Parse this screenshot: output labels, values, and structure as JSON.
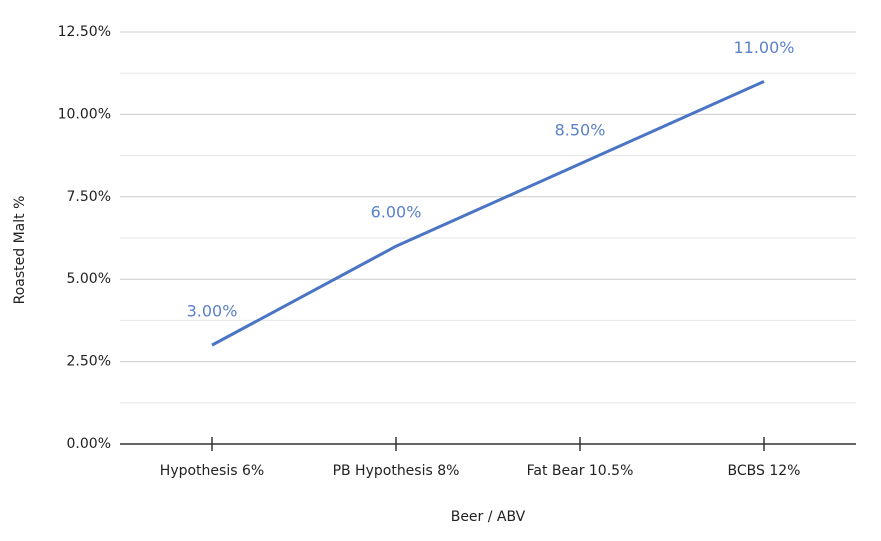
{
  "chart_data": {
    "type": "line",
    "x_label": "Beer / ABV",
    "y_label": "Roasted Malt %",
    "categories": [
      "Hypothesis 6%",
      "PB Hypothesis 8%",
      "Fat Bear 10.5%",
      "BCBS 12%"
    ],
    "values": [
      3,
      6,
      8.5,
      11
    ],
    "value_labels": [
      "3.00%",
      "6.00%",
      "8.50%",
      "11.00%"
    ],
    "color": "#4a74c4",
    "ylim": [
      0,
      12.5
    ],
    "yticks": [
      {
        "value": 0,
        "label": "0.00%"
      },
      {
        "value": 2.5,
        "label": "2.50%"
      },
      {
        "value": 5,
        "label": "5.00%"
      },
      {
        "value": 7.5,
        "label": "7.50%"
      },
      {
        "value": 10,
        "label": "10.00%"
      },
      {
        "value": 12.5,
        "label": "12.50%"
      }
    ],
    "grid": true,
    "minor_grid": true
  }
}
